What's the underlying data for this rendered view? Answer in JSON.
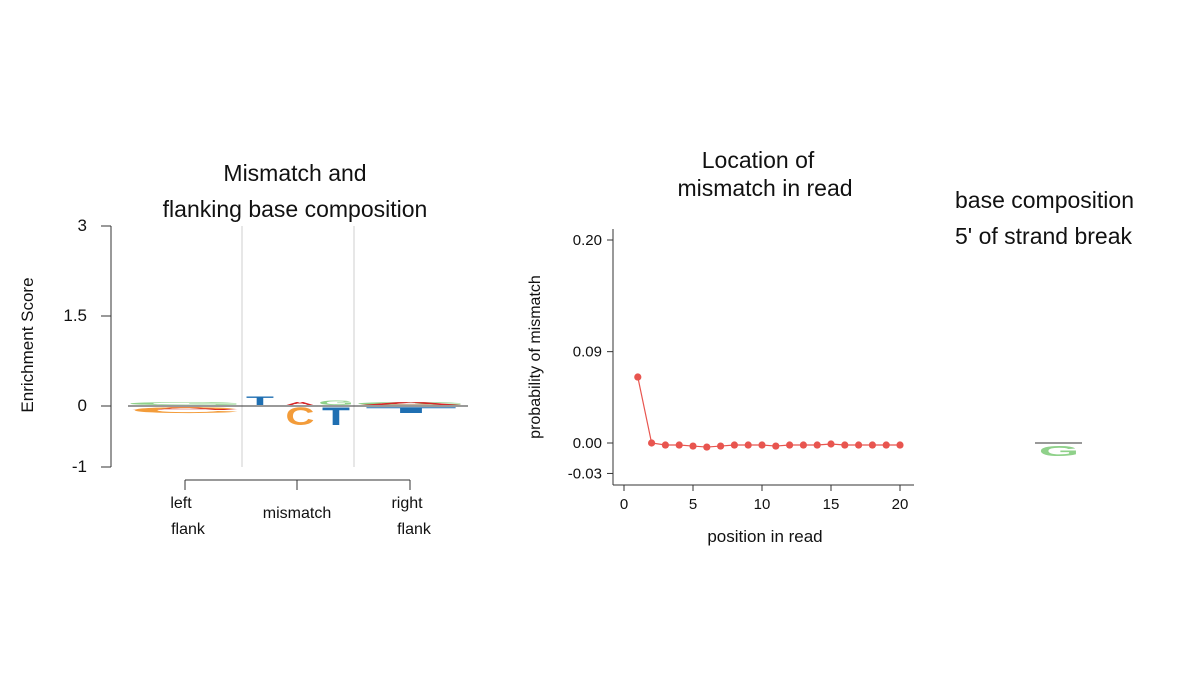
{
  "panel_left": {
    "title_line1": "Mismatch and",
    "title_line2": "flanking base composition",
    "ylabel": "Enrichment Score",
    "yticks": [
      "3",
      "1.5",
      "0",
      "-1"
    ],
    "regions": [
      {
        "line1": "left",
        "line2": "flank"
      },
      {
        "line1": "mismatch",
        "line2": ""
      },
      {
        "line1": "right",
        "line2": "flank"
      }
    ]
  },
  "panel_right": {
    "title_line1": "base composition",
    "title_line2": "5' of  strand break"
  },
  "chart_data": [
    {
      "type": "sequence-logo",
      "title": "Mismatch and flanking base composition",
      "ylabel": "Enrichment Score",
      "ylim": [
        -1,
        3
      ],
      "regions": [
        "left flank",
        "mismatch",
        "right flank"
      ],
      "letters": [
        {
          "region": "left flank",
          "base": "G",
          "score": 0.05
        },
        {
          "region": "left flank",
          "base": "A",
          "score": -0.03
        },
        {
          "region": "left flank",
          "base": "C",
          "score": -0.1
        },
        {
          "region": "mismatch",
          "base": "T",
          "score": 0.15
        },
        {
          "region": "mismatch",
          "base": "C",
          "score": -0.3
        },
        {
          "region": "mismatch",
          "base": "G",
          "score": 0.08
        },
        {
          "region": "mismatch",
          "base": "A",
          "score": 0.05
        },
        {
          "region": "mismatch",
          "base": "T",
          "score": -0.3
        },
        {
          "region": "right flank",
          "base": "G",
          "score": 0.05
        },
        {
          "region": "right flank",
          "base": "A",
          "score": 0.03
        },
        {
          "region": "right flank",
          "base": "T",
          "score": -0.1
        }
      ],
      "colors": {
        "A": "#d62728",
        "C": "#f39c3a",
        "G": "#8fd18a",
        "T": "#1f6fb2"
      }
    },
    {
      "type": "line",
      "title": "Location of mismatch in read",
      "title_line1": "Location of",
      "title_line2": "mismatch in read",
      "xlabel": "position in read",
      "ylabel": "probability of mismatch",
      "xlim": [
        0,
        21
      ],
      "ylim": [
        -0.03,
        0.2
      ],
      "xticks": [
        0,
        5,
        10,
        15,
        20
      ],
      "yticks": [
        -0.03,
        0.0,
        0.09,
        0.2
      ],
      "xtick_labels": [
        "0",
        "5",
        "10",
        "15",
        "20"
      ],
      "ytick_labels": [
        "-0.03",
        "0.00",
        "0.09",
        "0.20"
      ],
      "color": "#e8554f",
      "x": [
        1,
        2,
        3,
        4,
        5,
        6,
        7,
        8,
        9,
        10,
        11,
        12,
        13,
        14,
        15,
        16,
        17,
        18,
        19,
        20
      ],
      "y": [
        0.065,
        0.0,
        -0.002,
        -0.002,
        -0.003,
        -0.004,
        -0.003,
        -0.002,
        -0.002,
        -0.002,
        -0.003,
        -0.002,
        -0.002,
        -0.002,
        -0.001,
        -0.002,
        -0.002,
        -0.002,
        -0.002,
        -0.002
      ]
    },
    {
      "type": "sequence-logo",
      "title": "base composition 5' of  strand break",
      "letters": [
        {
          "base": "G",
          "score": -0.02
        }
      ],
      "colors": {
        "G": "#8fd18a"
      }
    }
  ]
}
